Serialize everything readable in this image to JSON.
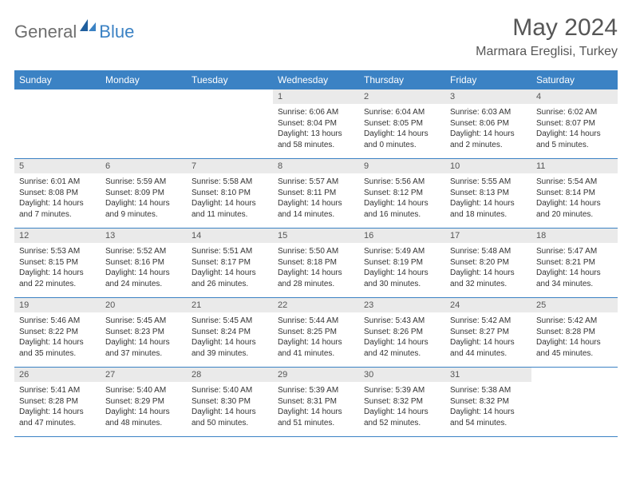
{
  "logo": {
    "general": "General",
    "blue": "Blue"
  },
  "title": "May 2024",
  "location": "Marmara Ereglisi, Turkey",
  "colors": {
    "header_bar": "#3b82c4",
    "daynum_bg": "#eaeaea",
    "text": "#333333",
    "title_text": "#565656",
    "logo_gray": "#6e6e6e",
    "logo_blue": "#3b82c4"
  },
  "dow": [
    "Sunday",
    "Monday",
    "Tuesday",
    "Wednesday",
    "Thursday",
    "Friday",
    "Saturday"
  ],
  "weeks": [
    [
      null,
      null,
      null,
      {
        "n": "1",
        "sr": "6:06 AM",
        "ss": "8:04 PM",
        "dl": "Daylight: 13 hours and 58 minutes."
      },
      {
        "n": "2",
        "sr": "6:04 AM",
        "ss": "8:05 PM",
        "dl": "Daylight: 14 hours and 0 minutes."
      },
      {
        "n": "3",
        "sr": "6:03 AM",
        "ss": "8:06 PM",
        "dl": "Daylight: 14 hours and 2 minutes."
      },
      {
        "n": "4",
        "sr": "6:02 AM",
        "ss": "8:07 PM",
        "dl": "Daylight: 14 hours and 5 minutes."
      }
    ],
    [
      {
        "n": "5",
        "sr": "6:01 AM",
        "ss": "8:08 PM",
        "dl": "Daylight: 14 hours and 7 minutes."
      },
      {
        "n": "6",
        "sr": "5:59 AM",
        "ss": "8:09 PM",
        "dl": "Daylight: 14 hours and 9 minutes."
      },
      {
        "n": "7",
        "sr": "5:58 AM",
        "ss": "8:10 PM",
        "dl": "Daylight: 14 hours and 11 minutes."
      },
      {
        "n": "8",
        "sr": "5:57 AM",
        "ss": "8:11 PM",
        "dl": "Daylight: 14 hours and 14 minutes."
      },
      {
        "n": "9",
        "sr": "5:56 AM",
        "ss": "8:12 PM",
        "dl": "Daylight: 14 hours and 16 minutes."
      },
      {
        "n": "10",
        "sr": "5:55 AM",
        "ss": "8:13 PM",
        "dl": "Daylight: 14 hours and 18 minutes."
      },
      {
        "n": "11",
        "sr": "5:54 AM",
        "ss": "8:14 PM",
        "dl": "Daylight: 14 hours and 20 minutes."
      }
    ],
    [
      {
        "n": "12",
        "sr": "5:53 AM",
        "ss": "8:15 PM",
        "dl": "Daylight: 14 hours and 22 minutes."
      },
      {
        "n": "13",
        "sr": "5:52 AM",
        "ss": "8:16 PM",
        "dl": "Daylight: 14 hours and 24 minutes."
      },
      {
        "n": "14",
        "sr": "5:51 AM",
        "ss": "8:17 PM",
        "dl": "Daylight: 14 hours and 26 minutes."
      },
      {
        "n": "15",
        "sr": "5:50 AM",
        "ss": "8:18 PM",
        "dl": "Daylight: 14 hours and 28 minutes."
      },
      {
        "n": "16",
        "sr": "5:49 AM",
        "ss": "8:19 PM",
        "dl": "Daylight: 14 hours and 30 minutes."
      },
      {
        "n": "17",
        "sr": "5:48 AM",
        "ss": "8:20 PM",
        "dl": "Daylight: 14 hours and 32 minutes."
      },
      {
        "n": "18",
        "sr": "5:47 AM",
        "ss": "8:21 PM",
        "dl": "Daylight: 14 hours and 34 minutes."
      }
    ],
    [
      {
        "n": "19",
        "sr": "5:46 AM",
        "ss": "8:22 PM",
        "dl": "Daylight: 14 hours and 35 minutes."
      },
      {
        "n": "20",
        "sr": "5:45 AM",
        "ss": "8:23 PM",
        "dl": "Daylight: 14 hours and 37 minutes."
      },
      {
        "n": "21",
        "sr": "5:45 AM",
        "ss": "8:24 PM",
        "dl": "Daylight: 14 hours and 39 minutes."
      },
      {
        "n": "22",
        "sr": "5:44 AM",
        "ss": "8:25 PM",
        "dl": "Daylight: 14 hours and 41 minutes."
      },
      {
        "n": "23",
        "sr": "5:43 AM",
        "ss": "8:26 PM",
        "dl": "Daylight: 14 hours and 42 minutes."
      },
      {
        "n": "24",
        "sr": "5:42 AM",
        "ss": "8:27 PM",
        "dl": "Daylight: 14 hours and 44 minutes."
      },
      {
        "n": "25",
        "sr": "5:42 AM",
        "ss": "8:28 PM",
        "dl": "Daylight: 14 hours and 45 minutes."
      }
    ],
    [
      {
        "n": "26",
        "sr": "5:41 AM",
        "ss": "8:28 PM",
        "dl": "Daylight: 14 hours and 47 minutes."
      },
      {
        "n": "27",
        "sr": "5:40 AM",
        "ss": "8:29 PM",
        "dl": "Daylight: 14 hours and 48 minutes."
      },
      {
        "n": "28",
        "sr": "5:40 AM",
        "ss": "8:30 PM",
        "dl": "Daylight: 14 hours and 50 minutes."
      },
      {
        "n": "29",
        "sr": "5:39 AM",
        "ss": "8:31 PM",
        "dl": "Daylight: 14 hours and 51 minutes."
      },
      {
        "n": "30",
        "sr": "5:39 AM",
        "ss": "8:32 PM",
        "dl": "Daylight: 14 hours and 52 minutes."
      },
      {
        "n": "31",
        "sr": "5:38 AM",
        "ss": "8:32 PM",
        "dl": "Daylight: 14 hours and 54 minutes."
      },
      null
    ]
  ],
  "labels": {
    "sunrise_prefix": "Sunrise: ",
    "sunset_prefix": "Sunset: "
  }
}
